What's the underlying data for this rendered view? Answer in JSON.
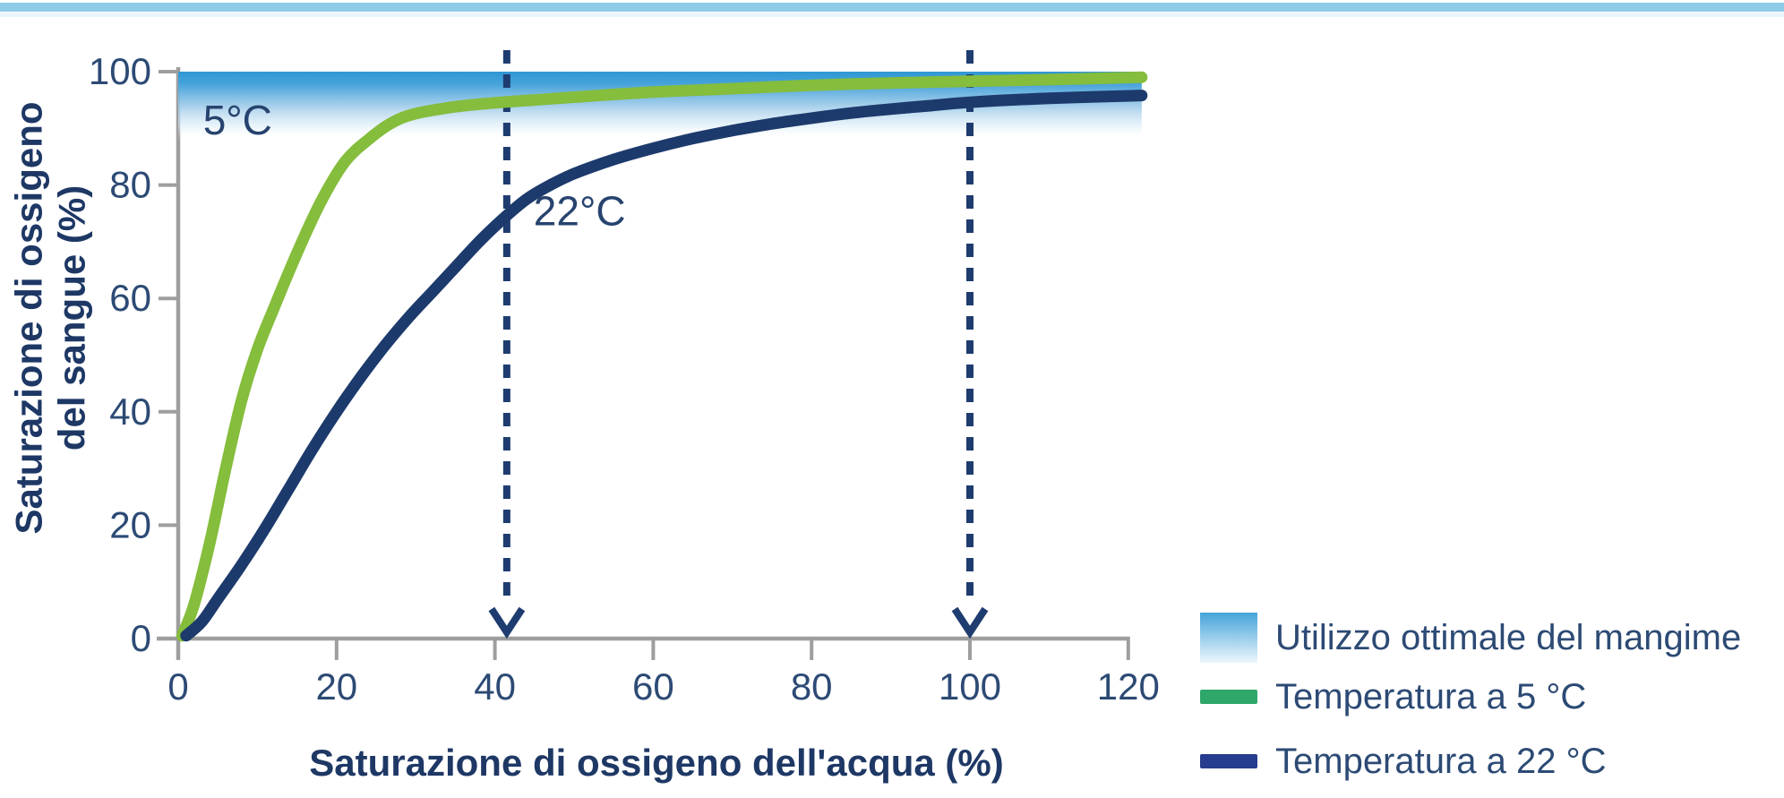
{
  "page": {
    "top_bar_color": "#8ecbe6",
    "top_bar_faint_color": "#eaf6fb",
    "background": "#ffffff"
  },
  "chart_data": {
    "type": "line",
    "title": "",
    "xlabel": "Saturazione di ossigeno dell'acqua (%)",
    "ylabel_lines": [
      "Saturazione di ossigeno",
      "del sangue (%)"
    ],
    "xlim": [
      0,
      120
    ],
    "ylim": [
      0,
      100
    ],
    "x_ticks": [
      0,
      20,
      40,
      60,
      80,
      100,
      120
    ],
    "y_ticks": [
      0,
      20,
      40,
      60,
      80,
      100
    ],
    "grid": false,
    "legend_position": "bottom-right",
    "colors": {
      "axis": "#9e9e9e",
      "tick_text": "#2c4a74",
      "title_text": "#1e3865",
      "annotation_text": "#27436f",
      "band_top": "#2f97d4",
      "band_mid": "#9cc9e8",
      "dashed_marker": "#1e3c6f",
      "curve_5c": "#85bd3c",
      "curve_22c": "#1d3a6c",
      "legend_green": "#2fa76a",
      "legend_navy": "#263c8d",
      "legend_gradient_top": "#46a3da",
      "legend_gradient_bottom": "#eef7fc"
    },
    "optimal_band": {
      "label": "Utilizzo ottimale del mangime",
      "x_start": 0,
      "x_end": 121.7,
      "y_top": 100,
      "y_fade_end": 88
    },
    "vertical_markers": [
      {
        "x": 41.5,
        "style": "dashed-arrow-down"
      },
      {
        "x": 100,
        "style": "dashed-arrow-down"
      }
    ],
    "series": [
      {
        "name": "Temperatura a 5 °C",
        "annotation": "5°C",
        "annotation_x": 7.5,
        "annotation_y": 91.5,
        "color": "#85bd3c",
        "points": [
          [
            0.5,
            0.5
          ],
          [
            2,
            6
          ],
          [
            4,
            17
          ],
          [
            6,
            30
          ],
          [
            8,
            42
          ],
          [
            10,
            51
          ],
          [
            12,
            58
          ],
          [
            15,
            68
          ],
          [
            18,
            77
          ],
          [
            21,
            84
          ],
          [
            24,
            88
          ],
          [
            27,
            91
          ],
          [
            30,
            92.6
          ],
          [
            35,
            93.8
          ],
          [
            40,
            94.5
          ],
          [
            45,
            95
          ],
          [
            50,
            95.5
          ],
          [
            60,
            96.4
          ],
          [
            70,
            97
          ],
          [
            80,
            97.6
          ],
          [
            90,
            98
          ],
          [
            100,
            98.3
          ],
          [
            110,
            98.6
          ],
          [
            121.7,
            99
          ]
        ]
      },
      {
        "name": "Temperatura a 22 °C",
        "annotation": "22°C",
        "annotation_x": 50.7,
        "annotation_y": 75.4,
        "color": "#1d3a6c",
        "points": [
          [
            1,
            0.5
          ],
          [
            3,
            3
          ],
          [
            5,
            7
          ],
          [
            8,
            13
          ],
          [
            11,
            19.5
          ],
          [
            14,
            26.5
          ],
          [
            17,
            33.5
          ],
          [
            20,
            40
          ],
          [
            23,
            46
          ],
          [
            26,
            51.5
          ],
          [
            29,
            56.5
          ],
          [
            32,
            61
          ],
          [
            35,
            65.5
          ],
          [
            38,
            70
          ],
          [
            41,
            74
          ],
          [
            44,
            77.5
          ],
          [
            47,
            80
          ],
          [
            50,
            82
          ],
          [
            55,
            84.5
          ],
          [
            60,
            86.5
          ],
          [
            65,
            88.2
          ],
          [
            70,
            89.6
          ],
          [
            75,
            90.8
          ],
          [
            80,
            91.8
          ],
          [
            85,
            92.7
          ],
          [
            90,
            93.4
          ],
          [
            95,
            94
          ],
          [
            100,
            94.6
          ],
          [
            110,
            95.3
          ],
          [
            121.7,
            95.8
          ]
        ]
      }
    ],
    "legend": [
      {
        "label": "Utilizzo ottimale del mangime",
        "swatch_type": "gradient"
      },
      {
        "label": "Temperatura a 5 °C",
        "swatch_type": "line",
        "color": "#2fa76a"
      },
      {
        "label": "Temperatura a 22 °C",
        "swatch_type": "line",
        "color": "#263c8d"
      }
    ]
  }
}
